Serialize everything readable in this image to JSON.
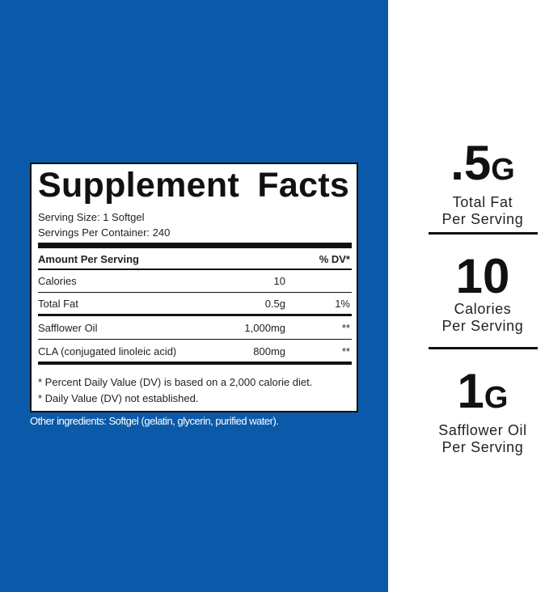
{
  "facts": {
    "title": "Supplement Facts",
    "serving_size": "Serving Size: 1 Softgel",
    "servings_per_container": "Servings Per Container: 240",
    "header": {
      "amount": "Amount Per Serving",
      "dv": "% DV*"
    },
    "rows": [
      {
        "name": "Calories",
        "amount": "10"
      },
      {
        "name": "Total Fat",
        "amount": "0.5g",
        "dv": "1%"
      },
      {
        "name": "Safflower Oil",
        "amount": "1,000mg",
        "dv": "**"
      },
      {
        "name": "CLA (conjugated linoleic acid)",
        "amount": "800mg",
        "dv": "**"
      }
    ],
    "footnotes": [
      "* Percent Daily Value (DV) is based on a 2,000 calorie diet.",
      "* Daily Value (DV) not established."
    ]
  },
  "other_ingredients": "Other ingredients: Softgel (gelatin, glycerin, purified water).",
  "highlights": [
    {
      "value": ".5",
      "unit": "G",
      "lines": [
        "Total Fat",
        "Per Serving"
      ]
    },
    {
      "value": "10",
      "lines": [
        "Calories",
        "Per Serving"
      ]
    },
    {
      "value": "1",
      "unit": "G",
      "lines": [
        "Safflower Oil",
        "Per Serving"
      ]
    }
  ]
}
